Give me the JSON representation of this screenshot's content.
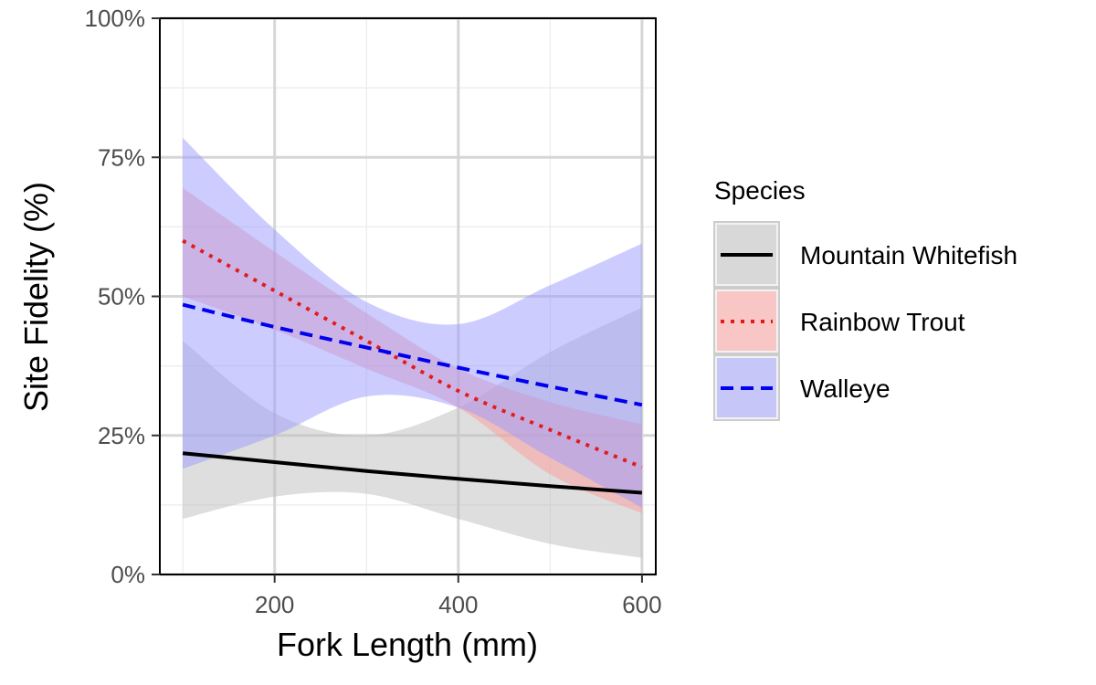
{
  "chart_data": {
    "type": "line",
    "xlabel": "Fork Length (mm)",
    "ylabel": "Site Fidelity (%)",
    "xlim": [
      75,
      615
    ],
    "ylim": [
      0,
      100
    ],
    "x_ticks": [
      200,
      400,
      600
    ],
    "x_tick_labels": [
      "200",
      "400",
      "600"
    ],
    "y_ticks": [
      0,
      25,
      50,
      75,
      100
    ],
    "y_tick_labels": [
      "0%",
      "25%",
      "50%",
      "75%",
      "100%"
    ],
    "grid": true,
    "legend": {
      "title": "Species",
      "position": "right"
    },
    "series": [
      {
        "name": "Mountain Whitefish",
        "color": "#000000",
        "fill": "#bdbdbd",
        "line_style": "solid",
        "x": [
          100,
          200,
          300,
          400,
          500,
          600
        ],
        "y": [
          21.8,
          20.2,
          18.6,
          17.2,
          15.9,
          14.7
        ],
        "lower": [
          10.0,
          14.0,
          14.5,
          10.0,
          5.5,
          3.0
        ],
        "upper": [
          42.0,
          29.0,
          25.0,
          30.0,
          40.0,
          48.0
        ]
      },
      {
        "name": "Rainbow Trout",
        "color": "#e31a1c",
        "fill": "#ff9999",
        "line_style": "dotted",
        "x": [
          100,
          200,
          300,
          400,
          500,
          600
        ],
        "y": [
          60.0,
          51.0,
          42.0,
          33.0,
          26.0,
          19.3
        ],
        "lower": [
          50.0,
          44.0,
          37.0,
          30.0,
          18.0,
          11.0
        ],
        "upper": [
          69.5,
          58.0,
          47.0,
          37.0,
          31.0,
          27.0
        ]
      },
      {
        "name": "Walleye",
        "color": "#0000ee",
        "fill": "#9999ff",
        "line_style": "dashed",
        "x": [
          100,
          200,
          300,
          400,
          500,
          600
        ],
        "y": [
          48.5,
          44.5,
          40.8,
          37.2,
          33.8,
          30.5
        ],
        "lower": [
          19.0,
          25.0,
          32.0,
          30.0,
          21.0,
          12.0
        ],
        "upper": [
          78.5,
          62.0,
          49.0,
          45.0,
          52.0,
          59.5
        ]
      }
    ]
  }
}
